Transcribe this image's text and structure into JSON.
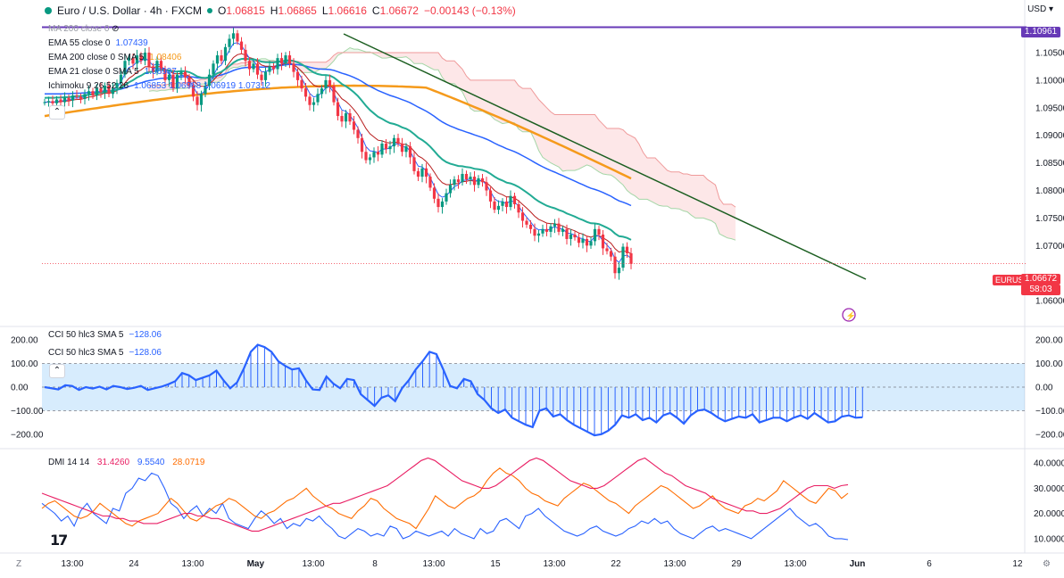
{
  "header": {
    "title": "Euro / U.S. Dollar · 4h · FXCM",
    "open": "1.06815",
    "high": "1.06865",
    "low": "1.06616",
    "close": "1.06672",
    "change": "−0.00143 (−0.13%)"
  },
  "currency_label": "USD",
  "legend_main": [
    {
      "label": "MA 200 close 0",
      "value": "",
      "color": "#9598a1"
    },
    {
      "label": "EMA 55 close 0",
      "value": "1.07439",
      "color": "#2962ff"
    },
    {
      "label": "EMA 200 close 0 SMA 5",
      "value": "1.08406",
      "color": "#f59a1b"
    },
    {
      "label": "EMA 21 close 0 SMA 5",
      "value": "1.06997",
      "color": "#2962ff"
    },
    {
      "label": "Ichimoku 9 26 52 26",
      "value": "1.06853  1.06968  1.06919  1.07312",
      "color": "#2962ff"
    }
  ],
  "legend_cci": [
    {
      "label": "CCI 50 hlc3 SMA 5",
      "value": "−128.06"
    },
    {
      "label": "CCI 50 hlc3 SMA 5",
      "value": "−128.06"
    }
  ],
  "legend_dmi": {
    "label": "DMI 14 14",
    "v1": "31.4260",
    "v2": "9.5540",
    "v3": "28.0719"
  },
  "price_tags": {
    "resistance": "1.10961",
    "symbol": "EURUSD",
    "last": "1.06672",
    "countdown": "58:03"
  },
  "colors": {
    "up": "#089981",
    "down": "#f23645",
    "ema55": "#2962ff",
    "ema200": "#f59a1b",
    "ema21": "#22ab94",
    "resistance": "#673ab7",
    "trend": "#1b5e20",
    "cci": "#2962ff",
    "dmi_plus": "#2962ff",
    "dmi_minus": "#ff6d00",
    "adx": "#e91e63"
  },
  "chart_data": [
    {
      "type": "candlestick",
      "title": "Euro / U.S. Dollar · 4h · FXCM",
      "ylim": [
        1.0555,
        1.1113
      ],
      "y_ticks": [
        "1.10500",
        "1.10000",
        "1.09500",
        "1.09000",
        "1.08500",
        "1.08000",
        "1.07500",
        "1.07000",
        "1.06000"
      ],
      "y_tick_values": [
        1.105,
        1.1,
        1.095,
        1.09,
        1.085,
        1.08,
        1.075,
        1.07,
        1.06
      ],
      "x_ticks": [
        "13:00",
        "24",
        "13:00",
        "May",
        "13:00",
        "8",
        "13:00",
        "15",
        "13:00",
        "22",
        "13:00",
        "29",
        "13:00",
        "Jun",
        "6",
        "12"
      ],
      "x_tick_index": [
        5,
        20,
        35,
        50,
        65,
        80,
        95,
        110,
        125,
        140,
        155,
        170,
        185,
        200,
        218,
        240
      ],
      "closes": [
        1.096,
        1.0962,
        1.0958,
        1.0965,
        1.096,
        1.0968,
        1.0963,
        1.0972,
        1.097,
        1.0966,
        1.0975,
        1.098,
        1.0972,
        1.0985,
        1.0978,
        1.099,
        1.0975,
        1.0985,
        1.0995,
        1.101,
        1.1035,
        1.104,
        1.103,
        1.1045,
        1.1035,
        1.105,
        1.1025,
        1.1015,
        1.1035,
        1.102,
        1.1,
        1.101,
        1.0985,
        1.101,
        1.1015,
        1.1005,
        1.099,
        1.097,
        1.0955,
        1.0975,
        1.099,
        1.101,
        1.103,
        1.1045,
        1.1035,
        1.106,
        1.1075,
        1.1085,
        1.107,
        1.1055,
        1.1035,
        1.102,
        1.103,
        1.101,
        1.1,
        1.1015,
        1.1025,
        1.102,
        1.104,
        1.103,
        1.1045,
        1.103,
        1.1015,
        1.1,
        1.0985,
        1.097,
        1.0955,
        1.096,
        1.0975,
        1.0985,
        1.1,
        1.099,
        1.096,
        1.0935,
        1.0925,
        1.094,
        1.0925,
        1.091,
        1.0895,
        1.087,
        1.0855,
        1.086,
        1.087,
        1.0865,
        1.0885,
        1.0875,
        1.088,
        1.0895,
        1.0885,
        1.087,
        1.088,
        1.086,
        1.0835,
        1.0825,
        1.084,
        1.0825,
        1.0805,
        1.0785,
        1.077,
        1.078,
        1.0795,
        1.081,
        1.082,
        1.0815,
        1.083,
        1.082,
        1.0825,
        1.081,
        1.0822,
        1.0815,
        1.08,
        1.078,
        1.0765,
        1.0772,
        1.078,
        1.077,
        1.079,
        1.0775,
        1.076,
        1.0745,
        1.0738,
        1.073,
        1.0718,
        1.0722,
        1.073,
        1.0725,
        1.0735,
        1.074,
        1.0725,
        1.073,
        1.0712,
        1.072,
        1.0715,
        1.0705,
        1.0712,
        1.07,
        1.0708,
        1.073,
        1.072,
        1.0695,
        1.069,
        1.068,
        1.065,
        1.066,
        1.0698,
        1.0686,
        1.0667
      ],
      "x_start_index": 0
    },
    {
      "type": "line",
      "title": "CCI 50 hlc3 SMA 5",
      "ylim": [
        -250,
        250
      ],
      "y_ticks": [
        "200.00",
        "100.00",
        "0.00",
        "−100.00",
        "−200.00"
      ],
      "y_tick_values": [
        200,
        100,
        0,
        -100,
        -200
      ],
      "band": [
        -100,
        100
      ],
      "values": [
        0,
        -5,
        -10,
        8,
        5,
        -12,
        0,
        -6,
        2,
        -10,
        5,
        0,
        -8,
        -3,
        5,
        -12,
        -5,
        2,
        12,
        25,
        60,
        50,
        30,
        40,
        50,
        70,
        30,
        -5,
        20,
        80,
        150,
        180,
        170,
        150,
        110,
        90,
        75,
        80,
        30,
        -10,
        -12,
        45,
        15,
        -5,
        35,
        30,
        -30,
        -55,
        -80,
        -45,
        -35,
        -60,
        -5,
        30,
        75,
        110,
        150,
        140,
        75,
        5,
        -5,
        35,
        25,
        -30,
        -55,
        -90,
        -110,
        -95,
        -130,
        -145,
        -160,
        -170,
        -100,
        -90,
        -125,
        -115,
        -140,
        -160,
        -175,
        -190,
        -205,
        -200,
        -185,
        -160,
        -120,
        -130,
        -115,
        -140,
        -130,
        -150,
        -120,
        -110,
        -130,
        -155,
        -120,
        -100,
        -95,
        -110,
        -130,
        -145,
        -135,
        -125,
        -130,
        -115,
        -150,
        -140,
        -130,
        -130,
        -145,
        -130,
        -120,
        -135,
        -110,
        -130,
        -150,
        -145,
        -125,
        -120,
        -130,
        -128
      ],
      "last_value": -128.06
    },
    {
      "type": "line",
      "title": "DMI 14 14",
      "ylim": [
        5,
        45
      ],
      "y_ticks": [
        "40.0000",
        "30.0000",
        "20.0000",
        "10.0000"
      ],
      "y_tick_values": [
        40,
        30,
        20,
        10
      ],
      "series": [
        {
          "name": "+DI",
          "color": "#2962ff",
          "values": [
            24,
            22,
            20,
            17,
            19,
            15,
            21,
            24,
            20,
            18,
            16,
            22,
            21,
            28,
            30,
            34,
            33,
            36,
            35,
            30,
            24,
            22,
            18,
            21,
            23,
            19,
            22,
            20,
            24,
            18,
            16,
            15,
            14,
            18,
            21,
            19,
            16,
            18,
            14,
            16,
            15,
            18,
            17,
            19,
            16,
            14,
            11,
            10,
            12,
            14,
            13,
            11,
            12,
            11,
            15,
            14,
            10,
            11,
            13,
            12,
            11,
            12,
            13,
            11,
            14,
            12,
            11,
            10,
            14,
            12,
            13,
            17,
            18,
            16,
            14,
            19,
            20,
            22,
            19,
            17,
            15,
            13,
            12,
            11,
            12,
            14,
            15,
            13,
            12,
            11,
            12,
            14,
            15,
            17,
            16,
            18,
            16,
            17,
            14,
            12,
            11,
            10,
            12,
            14,
            15,
            13,
            14,
            13,
            12,
            11,
            10,
            12,
            14,
            16,
            18,
            20,
            22,
            19,
            17,
            15,
            16,
            14,
            11,
            10,
            10,
            9.6
          ]
        },
        {
          "name": "-DI",
          "color": "#ff6d00",
          "values": [
            22,
            24,
            25,
            23,
            21,
            19,
            18,
            19,
            21,
            24,
            22,
            20,
            18,
            16,
            15,
            17,
            18,
            19,
            20,
            23,
            26,
            24,
            21,
            18,
            17,
            19,
            21,
            23,
            24,
            26,
            25,
            23,
            21,
            19,
            18,
            20,
            21,
            23,
            25,
            26,
            28,
            30,
            27,
            25,
            23,
            22,
            20,
            19,
            18,
            21,
            23,
            26,
            25,
            22,
            20,
            18,
            17,
            16,
            14,
            18,
            22,
            27,
            25,
            23,
            22,
            24,
            26,
            27,
            29,
            33,
            36,
            38,
            36,
            35,
            33,
            30,
            28,
            27,
            25,
            24,
            23,
            26,
            28,
            30,
            32,
            31,
            29,
            27,
            25,
            24,
            22,
            20,
            23,
            25,
            27,
            29,
            31,
            30,
            28,
            26,
            24,
            22,
            23,
            25,
            27,
            24,
            22,
            21,
            20,
            23,
            24,
            26,
            25,
            27,
            29,
            33,
            31,
            29,
            27,
            25,
            24,
            27,
            30,
            29,
            26,
            28
          ]
        },
        {
          "name": "ADX",
          "color": "#e91e63",
          "values": [
            28,
            27,
            26,
            25,
            24,
            23,
            22,
            21,
            20,
            19,
            19,
            18,
            18,
            17,
            17,
            16,
            16,
            16,
            17,
            18,
            19,
            20,
            20,
            19,
            19,
            18,
            18,
            17,
            16,
            15,
            14,
            13,
            13,
            14,
            15,
            16,
            17,
            18,
            19,
            20,
            21,
            22,
            23,
            24,
            24,
            25,
            26,
            27,
            28,
            29,
            30,
            31,
            33,
            35,
            37,
            39,
            41,
            42,
            41,
            39,
            37,
            35,
            33,
            32,
            31,
            30,
            30,
            31,
            33,
            35,
            37,
            39,
            41,
            42,
            41,
            39,
            37,
            35,
            33,
            32,
            31,
            30,
            30,
            31,
            33,
            35,
            37,
            39,
            41,
            42,
            40,
            38,
            36,
            35,
            33,
            31,
            30,
            29,
            28,
            26,
            25,
            24,
            23,
            22,
            21,
            21,
            20,
            20,
            21,
            22,
            24,
            26,
            28,
            30,
            31,
            31,
            31,
            30,
            31,
            31.4
          ]
        }
      ]
    }
  ]
}
